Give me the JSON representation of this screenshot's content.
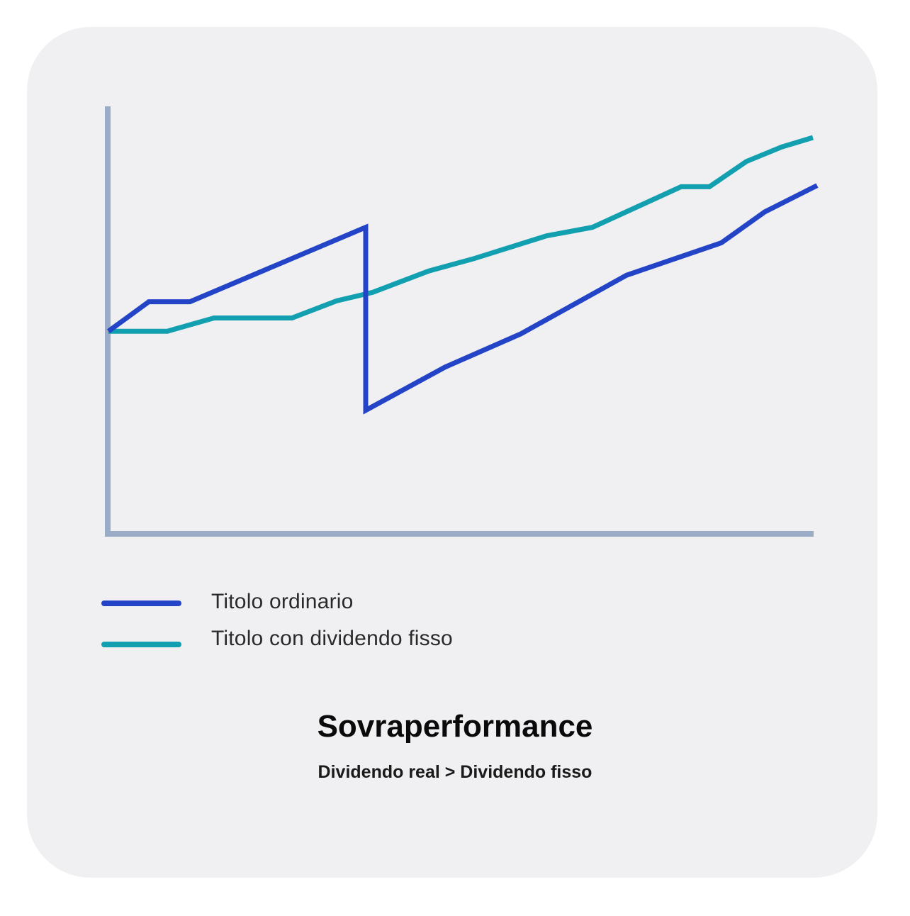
{
  "title": "Sovraperformance",
  "subtitle": "Dividendo real > Dividendo fisso",
  "colors": {
    "axis": "#9aacc6",
    "card": "#f0f0f2"
  },
  "chart_data": {
    "type": "line",
    "title": "Sovraperformance",
    "subtitle": "Dividendo real > Dividendo fisso",
    "xlabel": "",
    "ylabel": "",
    "xlim": [
      0,
      100
    ],
    "ylim": [
      0,
      100
    ],
    "grid": false,
    "legend_position": "bottom-left",
    "series": [
      {
        "name": "Titolo ordinario",
        "color": "#2344c6",
        "x": [
          0,
          5.7,
          11.5,
          36.3,
          36.3,
          47.5,
          58.2,
          73.1,
          86.5,
          92.6,
          100
        ],
        "y": [
          47.4,
          54.3,
          54.3,
          71.7,
          28.9,
          39.0,
          46.8,
          60.5,
          68.1,
          75.3,
          81.5
        ]
      },
      {
        "name": "Titolo con dividendo fisso",
        "color": "#12a0b0",
        "x": [
          0,
          8.3,
          14.9,
          25.9,
          32.2,
          37.3,
          45.2,
          51.6,
          61.8,
          68.3,
          80.8,
          84.8,
          90.0,
          95.0,
          99.4
        ],
        "y": [
          47.4,
          47.4,
          50.5,
          50.5,
          54.5,
          56.5,
          61.5,
          64.4,
          69.7,
          71.7,
          81.2,
          81.2,
          87.1,
          90.5,
          92.7
        ]
      }
    ]
  }
}
